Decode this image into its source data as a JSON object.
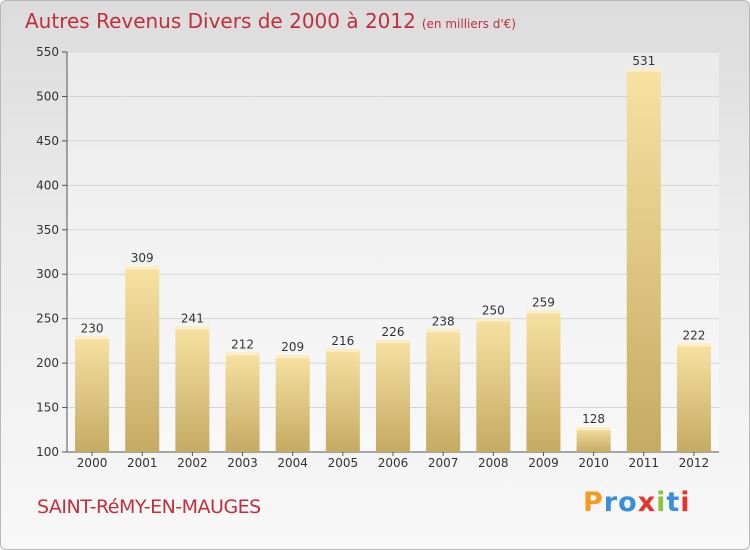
{
  "header": {
    "title": "Autres Revenus Divers de 2000 à 2012",
    "unit": "(en milliers d'€)"
  },
  "footer": {
    "town": "SAINT-RéMY-EN-MAUGES",
    "brand": "Proxiti"
  },
  "colors": {
    "title": "#c0303c",
    "bar_light": "#f7e2a3",
    "bar_dark": "#c5aa62",
    "grid": "#d6d6d6",
    "axis": "#555555",
    "brand_letters": [
      "#f39a1f",
      "#3b8fd8",
      "#3b8fd8",
      "#e8332a",
      "#8cc33f",
      "#3b8fd8",
      "#e8332a"
    ]
  },
  "chart_data": {
    "type": "bar",
    "title": "Autres Revenus Divers de 2000 à 2012",
    "subtitle": "(en milliers d'€)",
    "categories": [
      "2000",
      "2001",
      "2002",
      "2003",
      "2004",
      "2005",
      "2006",
      "2007",
      "2008",
      "2009",
      "2010",
      "2011",
      "2012"
    ],
    "values": [
      230,
      309,
      241,
      212,
      209,
      216,
      226,
      238,
      250,
      259,
      128,
      531,
      222
    ],
    "ylim": [
      100,
      550
    ],
    "yticks": [
      100,
      150,
      200,
      250,
      300,
      350,
      400,
      450,
      500,
      550
    ],
    "grid": true,
    "data_labels": true
  }
}
